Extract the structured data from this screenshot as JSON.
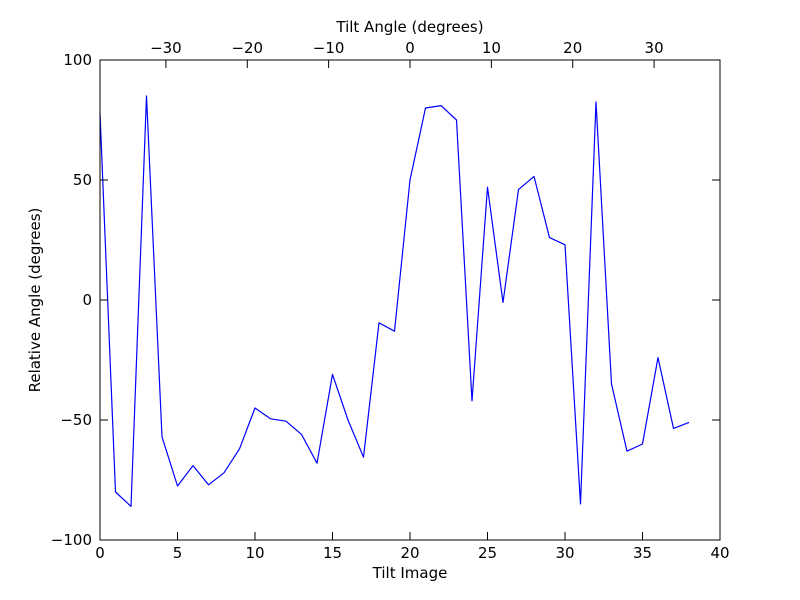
{
  "chart_data": {
    "type": "line",
    "xlabel": "Tilt Image",
    "ylabel": "Relative Angle (degrees)",
    "top_xlabel": "Tilt Angle (degrees)",
    "xlim": [
      0,
      40
    ],
    "ylim": [
      -100,
      100
    ],
    "xticks": [
      0,
      5,
      10,
      15,
      20,
      25,
      30,
      35,
      40
    ],
    "yticks": [
      -100,
      -50,
      0,
      50,
      100
    ],
    "xtick_labels": [
      "0",
      "5",
      "10",
      "15",
      "20",
      "25",
      "30",
      "35",
      "40"
    ],
    "ytick_labels": [
      "−100",
      "−50",
      "0",
      "50",
      "100"
    ],
    "top_ticks": [
      {
        "label": "−30",
        "value": -30
      },
      {
        "label": "−20",
        "value": -20
      },
      {
        "label": "−10",
        "value": -10
      },
      {
        "label": "0",
        "value": 0
      },
      {
        "label": "10",
        "value": 10
      },
      {
        "label": "20",
        "value": 20
      },
      {
        "label": "30",
        "value": 30
      }
    ],
    "top_axis_map": {
      "zero_at_bottom_x": 20.0,
      "units_per_bottom_x": 1.905
    },
    "grid": false,
    "series": [
      {
        "color": "#0000ff",
        "x": [
          0,
          1,
          2,
          3,
          4,
          5,
          6,
          7,
          8,
          9,
          10,
          11,
          12,
          13,
          14,
          15,
          16,
          17,
          18,
          19,
          20,
          21,
          22,
          23,
          24,
          25,
          26,
          27,
          28,
          29,
          30,
          31,
          32,
          33,
          34,
          35,
          36,
          37,
          38
        ],
        "y": [
          78,
          -80,
          -86,
          85,
          -57,
          -77.5,
          -69,
          -77,
          -72,
          -62,
          -45,
          -49.5,
          -50.5,
          -56,
          -68,
          -31,
          -50,
          -65.5,
          -9.5,
          -13,
          50,
          80,
          81,
          75,
          -42,
          47,
          -1,
          46,
          51.5,
          26,
          23,
          -85,
          82.5,
          -35,
          -63,
          -60,
          -24,
          -53.5,
          -51
        ]
      }
    ]
  }
}
